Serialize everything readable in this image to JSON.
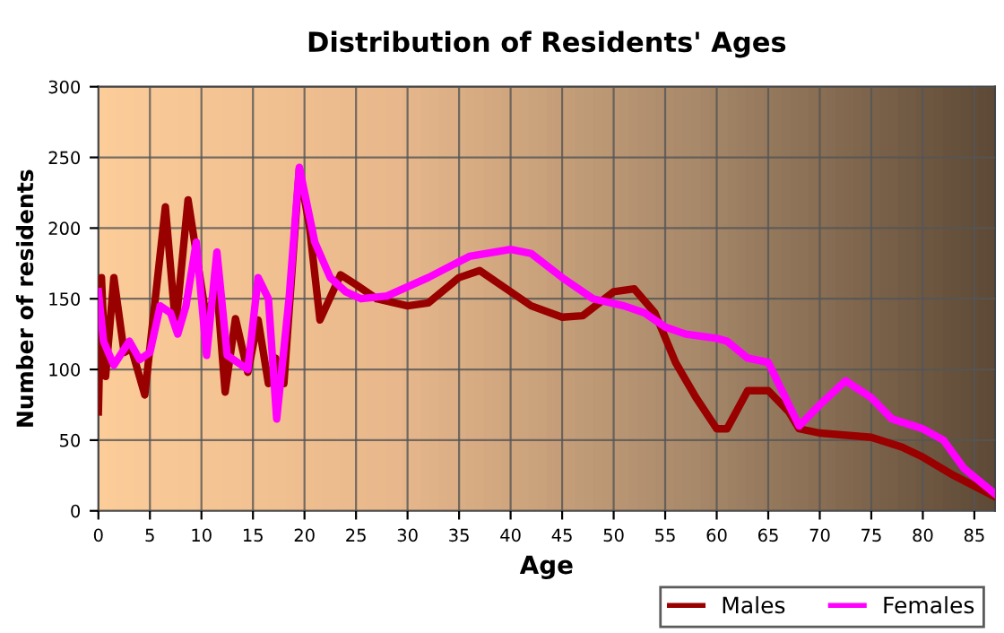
{
  "chart_data": {
    "type": "line",
    "title": "Distribution of Residents' Ages",
    "xlabel": "Age",
    "ylabel": "Number of residents",
    "xlim": [
      0,
      87
    ],
    "xticks": [
      0,
      5,
      10,
      15,
      20,
      25,
      30,
      35,
      40,
      45,
      50,
      55,
      60,
      65,
      70,
      75,
      80,
      85
    ],
    "ylim": [
      0,
      300
    ],
    "yticks": [
      0,
      50,
      100,
      150,
      200,
      250,
      300
    ],
    "grid": true,
    "legend": "bottom right",
    "marker": "none",
    "line_style": "solid",
    "series": [
      {
        "name": "Males",
        "color": "#990000",
        "x": [
          0,
          0.3,
          0.7,
          1.5,
          2.5,
          3.2,
          4.5,
          6.5,
          7.5,
          8.7,
          10.5,
          11.5,
          12.3,
          13.3,
          14.5,
          15.5,
          16.5,
          17.2,
          18,
          19.5,
          20.5,
          21.5,
          23.5,
          25,
          27,
          30,
          32,
          35,
          37,
          40,
          42,
          45,
          47,
          50,
          52,
          54,
          56,
          58,
          60,
          61,
          63,
          65,
          67,
          68,
          70,
          75,
          78,
          80,
          83,
          87
        ],
        "values": [
          70,
          165,
          95,
          165,
          112,
          115,
          82,
          215,
          130,
          220,
          135,
          158,
          84,
          136,
          98,
          135,
          90,
          108,
          90,
          242,
          200,
          135,
          167,
          160,
          150,
          145,
          147,
          165,
          170,
          155,
          145,
          137,
          138,
          155,
          157,
          140,
          105,
          80,
          58,
          58,
          85,
          85,
          70,
          58,
          55,
          52,
          45,
          38,
          25,
          10
        ]
      },
      {
        "name": "Females",
        "color": "#ff00ff",
        "x": [
          0,
          0.5,
          1.5,
          3,
          4,
          5,
          6,
          7,
          7.7,
          8.5,
          9.5,
          10.5,
          11.5,
          12.5,
          13.5,
          14.5,
          15.5,
          16.5,
          17.3,
          18.5,
          19.5,
          21,
          22.5,
          24,
          25.5,
          28,
          32,
          36,
          40,
          42,
          45,
          48,
          51,
          53,
          55,
          57,
          60,
          61,
          63,
          65,
          66,
          68,
          70,
          72.5,
          75,
          77,
          80,
          82,
          84,
          87
        ],
        "values": [
          155,
          120,
          103,
          120,
          107,
          112,
          145,
          140,
          125,
          145,
          190,
          110,
          183,
          110,
          105,
          100,
          165,
          150,
          65,
          150,
          243,
          190,
          165,
          155,
          150,
          152,
          165,
          180,
          185,
          182,
          165,
          150,
          145,
          140,
          130,
          125,
          122,
          120,
          108,
          105,
          90,
          60,
          75,
          92,
          80,
          65,
          58,
          50,
          30,
          12
        ]
      }
    ]
  }
}
